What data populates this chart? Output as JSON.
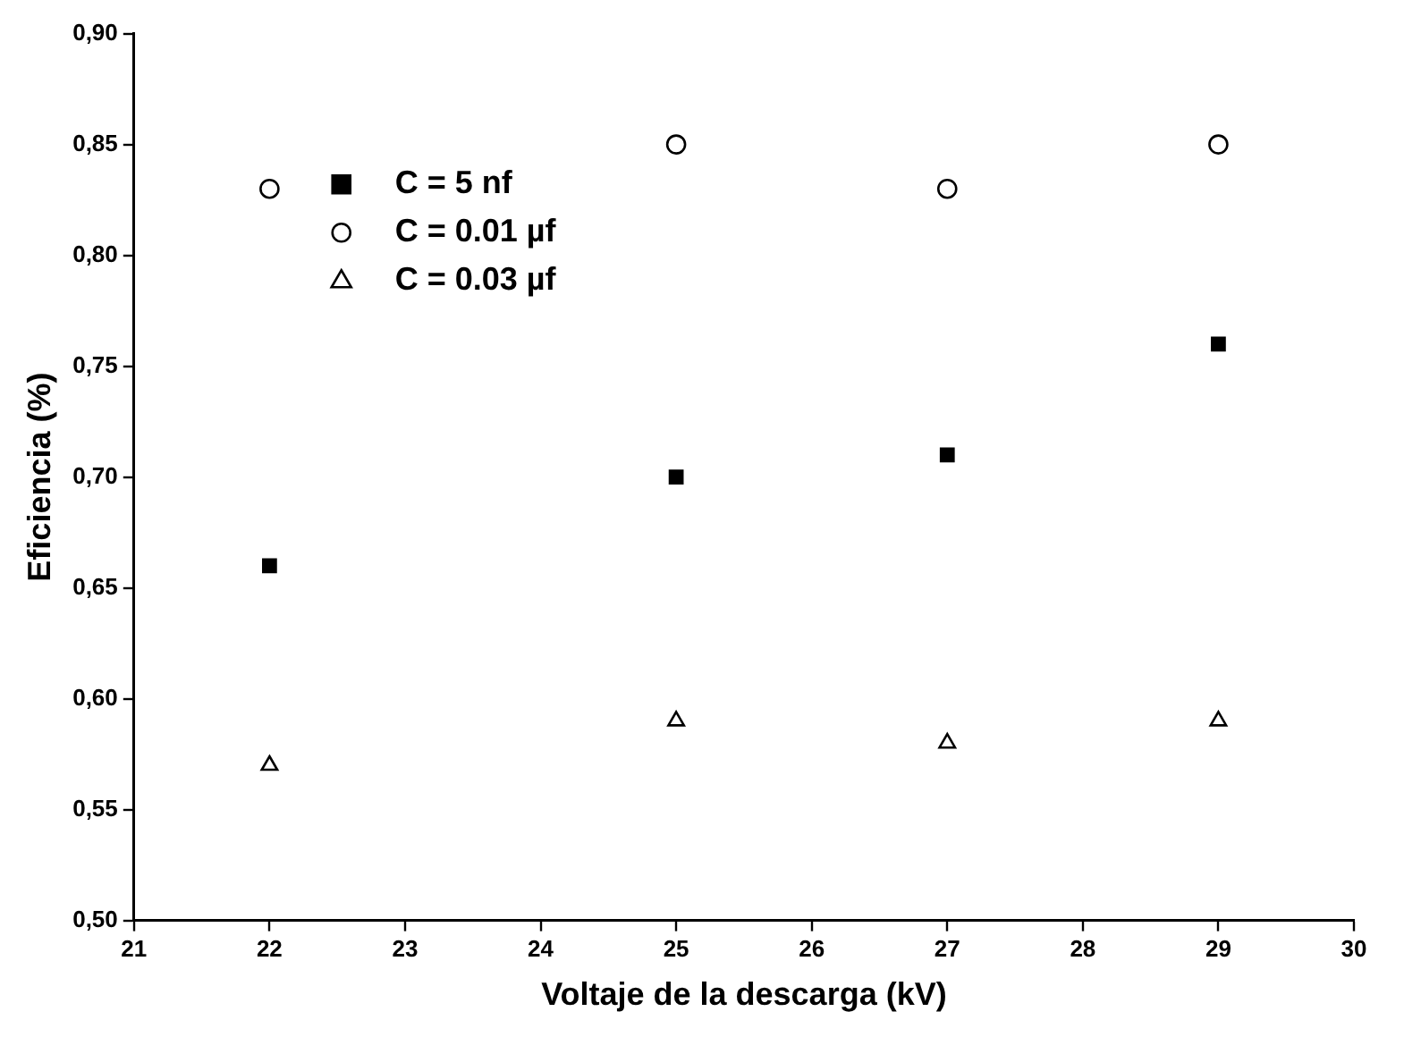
{
  "chart_data": {
    "type": "scatter",
    "xlabel": "Voltaje de la descarga (kV)",
    "ylabel": "Eficiencia (%)",
    "x": [
      22,
      25,
      27,
      29
    ],
    "series": [
      {
        "name": "C = 5 nf",
        "color": "#000000",
        "marker": "square",
        "values": [
          0.66,
          0.7,
          0.71,
          0.76
        ]
      },
      {
        "name": "C = 0.01 µf",
        "color": "#000000",
        "marker": "circle",
        "values": [
          0.83,
          0.85,
          0.83,
          0.85
        ]
      },
      {
        "name": "C = 0.03 µf",
        "color": "#000000",
        "marker": "triangle",
        "values": [
          0.57,
          0.59,
          0.58,
          0.59
        ]
      }
    ],
    "xlim": [
      21,
      30
    ],
    "xticks": [
      21,
      22,
      23,
      24,
      25,
      26,
      27,
      28,
      29,
      30
    ],
    "ylim": [
      0.5,
      0.9
    ],
    "yticks": [
      {
        "value": 0.5,
        "label": "0,50"
      },
      {
        "value": 0.55,
        "label": "0,55"
      },
      {
        "value": 0.6,
        "label": "0,60"
      },
      {
        "value": 0.65,
        "label": "0,65"
      },
      {
        "value": 0.7,
        "label": "0,70"
      },
      {
        "value": 0.75,
        "label": "0,75"
      },
      {
        "value": 0.8,
        "label": "0,80"
      },
      {
        "value": 0.85,
        "label": "0,85"
      },
      {
        "value": 0.9,
        "label": "0,90"
      }
    ],
    "grid": false,
    "legend": "top left"
  }
}
